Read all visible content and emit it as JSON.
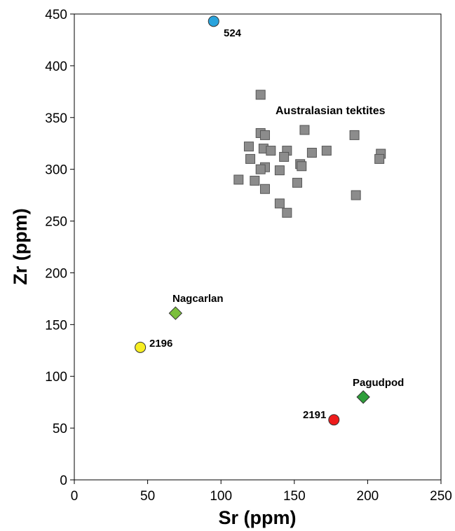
{
  "chart_data": {
    "type": "scatter",
    "title": "",
    "xlabel": "Sr (ppm)",
    "ylabel": "Zr (ppm)",
    "xlim": [
      0,
      250
    ],
    "ylim": [
      0,
      450
    ],
    "xticks": [
      "0",
      "50",
      "100",
      "150",
      "200",
      "250"
    ],
    "yticks": [
      "0",
      "50",
      "100",
      "150",
      "200",
      "250",
      "300",
      "350",
      "400",
      "450"
    ],
    "grid": false,
    "series": [
      {
        "name": "Australasian tektites",
        "marker": "square",
        "color": "#8c8c8c",
        "points": [
          [
            127,
            372
          ],
          [
            157,
            338
          ],
          [
            127,
            335
          ],
          [
            130,
            333
          ],
          [
            191,
            333
          ],
          [
            119,
            322
          ],
          [
            129,
            320
          ],
          [
            134,
            318
          ],
          [
            145,
            318
          ],
          [
            162,
            316
          ],
          [
            172,
            318
          ],
          [
            209,
            315
          ],
          [
            143,
            312
          ],
          [
            120,
            310
          ],
          [
            208,
            310
          ],
          [
            154,
            305
          ],
          [
            155,
            303
          ],
          [
            130,
            302
          ],
          [
            127,
            300
          ],
          [
            140,
            299
          ],
          [
            112,
            290
          ],
          [
            123,
            289
          ],
          [
            152,
            287
          ],
          [
            130,
            281
          ],
          [
            192,
            275
          ],
          [
            140,
            267
          ],
          [
            145,
            258
          ]
        ]
      },
      {
        "name": "524",
        "marker": "circle",
        "color": "#29a3dc",
        "points": [
          [
            95,
            443
          ]
        ]
      },
      {
        "name": "Nagcarlan",
        "marker": "diamond",
        "color": "#7bbf3c",
        "points": [
          [
            69,
            161
          ]
        ]
      },
      {
        "name": "2196",
        "marker": "circle",
        "color": "#f7ee22",
        "points": [
          [
            45,
            128
          ]
        ]
      },
      {
        "name": "Pagudpod",
        "marker": "diamond",
        "color": "#2e9e3a",
        "points": [
          [
            197,
            80
          ]
        ]
      },
      {
        "name": "2191",
        "marker": "circle",
        "color": "#ee1c1c",
        "points": [
          [
            177,
            58
          ]
        ]
      }
    ]
  }
}
